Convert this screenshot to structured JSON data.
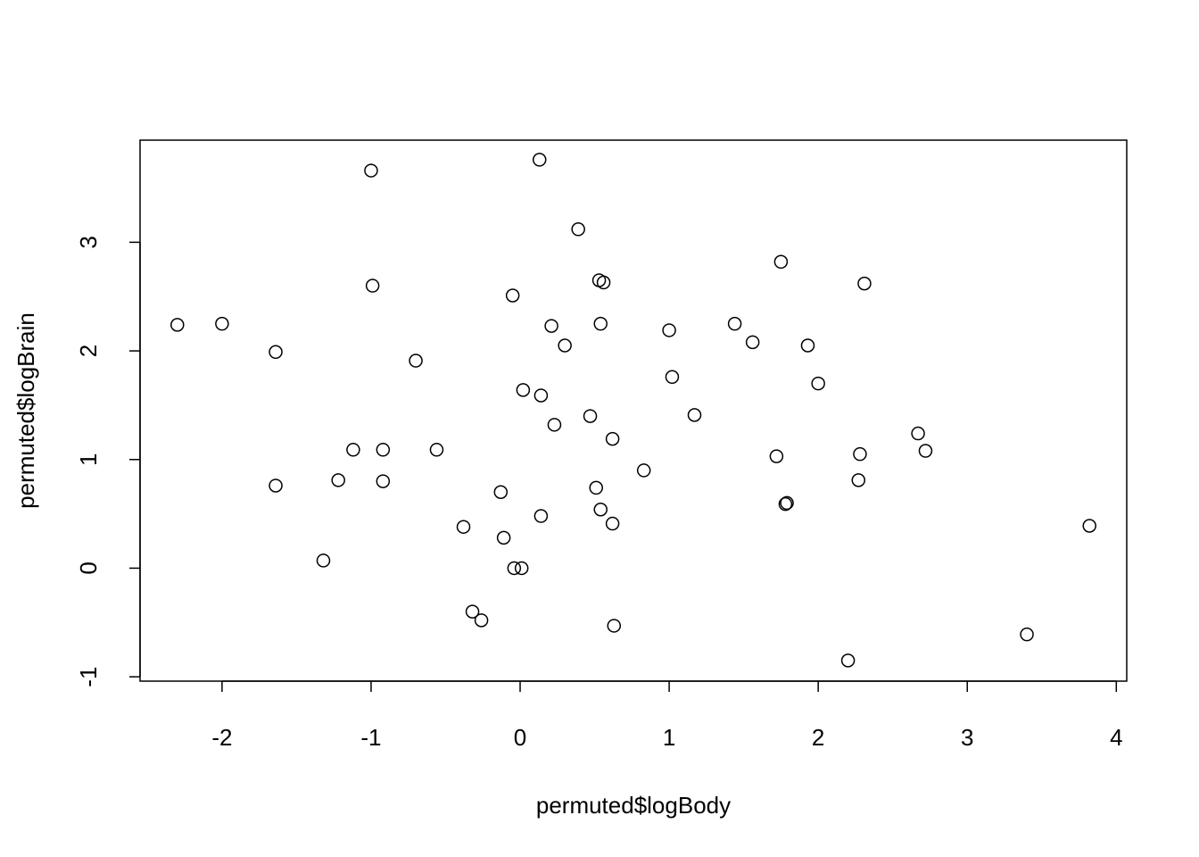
{
  "chart_data": {
    "type": "scatter",
    "title": "",
    "xlabel": "permuted$logBody",
    "ylabel": "permuted$logBrain",
    "xlim": [
      -2.55,
      4.07
    ],
    "ylim": [
      -1.04,
      3.94
    ],
    "xticks": [
      -2,
      -1,
      0,
      1,
      2,
      3,
      4
    ],
    "yticks": [
      -1,
      0,
      1,
      2,
      3
    ],
    "xtick_labels": [
      "-2",
      "-1",
      "0",
      "1",
      "2",
      "3",
      "4"
    ],
    "ytick_labels": [
      "-1",
      "0",
      "1",
      "2",
      "3"
    ],
    "grid": false,
    "marker": "open-circle",
    "color": "#000000",
    "points": [
      [
        -2.3,
        2.24
      ],
      [
        -2.0,
        2.25
      ],
      [
        -1.64,
        1.99
      ],
      [
        -1.64,
        0.76
      ],
      [
        -1.32,
        0.07
      ],
      [
        -1.22,
        0.81
      ],
      [
        -1.12,
        1.09
      ],
      [
        -1.0,
        3.66
      ],
      [
        -0.99,
        2.6
      ],
      [
        -0.92,
        1.09
      ],
      [
        -0.92,
        0.8
      ],
      [
        -0.7,
        1.91
      ],
      [
        -0.56,
        1.09
      ],
      [
        -0.38,
        0.38
      ],
      [
        -0.32,
        -0.4
      ],
      [
        -0.26,
        -0.48
      ],
      [
        -0.13,
        0.7
      ],
      [
        -0.11,
        0.28
      ],
      [
        -0.05,
        2.51
      ],
      [
        -0.04,
        0.0
      ],
      [
        0.01,
        0.0
      ],
      [
        0.02,
        1.64
      ],
      [
        0.13,
        3.76
      ],
      [
        0.14,
        1.59
      ],
      [
        0.14,
        0.48
      ],
      [
        0.21,
        2.23
      ],
      [
        0.23,
        1.32
      ],
      [
        0.3,
        2.05
      ],
      [
        0.39,
        3.12
      ],
      [
        0.47,
        1.4
      ],
      [
        0.51,
        0.74
      ],
      [
        0.53,
        2.65
      ],
      [
        0.56,
        2.63
      ],
      [
        0.54,
        2.25
      ],
      [
        0.54,
        0.54
      ],
      [
        0.62,
        1.19
      ],
      [
        0.62,
        0.41
      ],
      [
        0.63,
        -0.53
      ],
      [
        0.83,
        0.9
      ],
      [
        1.0,
        2.19
      ],
      [
        1.02,
        1.76
      ],
      [
        1.17,
        1.41
      ],
      [
        1.44,
        2.25
      ],
      [
        1.56,
        2.08
      ],
      [
        1.72,
        1.03
      ],
      [
        1.75,
        2.82
      ],
      [
        1.78,
        0.59
      ],
      [
        1.79,
        0.6
      ],
      [
        1.93,
        2.05
      ],
      [
        2.0,
        1.7
      ],
      [
        2.2,
        -0.85
      ],
      [
        2.27,
        0.81
      ],
      [
        2.28,
        1.05
      ],
      [
        2.31,
        2.62
      ],
      [
        2.67,
        1.24
      ],
      [
        2.72,
        1.08
      ],
      [
        3.4,
        -0.61
      ],
      [
        3.82,
        0.39
      ]
    ]
  }
}
